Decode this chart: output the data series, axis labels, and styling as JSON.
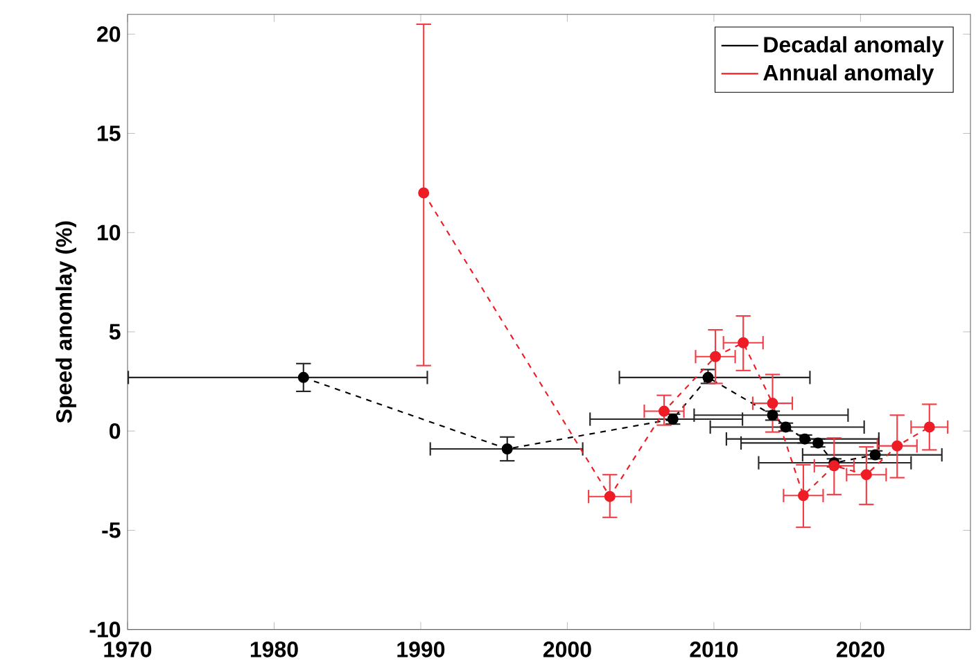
{
  "chart_data": {
    "type": "line",
    "ylabel": "Speed anomlay (%)",
    "xlim": [
      1970,
      2027.5
    ],
    "ylim": [
      -10,
      21
    ],
    "xticks": [
      1970,
      1980,
      1990,
      2000,
      2010,
      2020
    ],
    "yticks": [
      -10,
      -5,
      0,
      5,
      10,
      15,
      20
    ],
    "legend": "top right",
    "marker": "circle",
    "line_style": "dashed",
    "grid": false,
    "series": [
      {
        "name": "Decadal anomaly",
        "color": "#000000",
        "x": [
          1982.0,
          1995.9,
          2007.2,
          2009.6,
          2014.0,
          2014.9,
          2016.2,
          2017.1,
          2018.2,
          2021.0
        ],
        "values": [
          2.7,
          -0.9,
          0.6,
          2.7,
          0.8,
          0.2,
          -0.4,
          -0.6,
          -1.6,
          -1.2
        ],
        "errors": [
          [
            2.0,
            3.4
          ],
          [
            -1.5,
            -0.3
          ],
          [
            0.35,
            0.85
          ],
          [
            2.4,
            3.1
          ],
          [
            0.55,
            1.0
          ],
          [
            0.0,
            0.4
          ],
          [
            -0.6,
            -0.2
          ],
          [
            -0.8,
            -0.4
          ],
          [
            -1.8,
            -1.4
          ],
          [
            -1.4,
            -1.0
          ]
        ],
        "xerrors": [
          [
            1970,
            1990.5
          ],
          [
            1990.6,
            2001.1
          ],
          [
            2001.5,
            2012.0
          ],
          [
            2003.5,
            2016.6
          ],
          [
            2008.6,
            2019.2
          ],
          [
            2009.7,
            2020.3
          ],
          [
            2010.8,
            2021.3
          ],
          [
            2011.8,
            2021.3
          ],
          [
            2013.0,
            2023.5
          ],
          [
            2016.0,
            2025.6
          ]
        ]
      },
      {
        "name": "Annual anomaly",
        "color": "#ee1c25",
        "x": [
          1990.2,
          2002.9,
          2006.6,
          2010.1,
          2012.0,
          2014.0,
          2016.1,
          2018.2,
          2020.4,
          2022.5,
          2024.7
        ],
        "values": [
          12,
          -3.3,
          1.0,
          3.75,
          4.45,
          1.4,
          -3.25,
          -1.75,
          -2.2,
          -0.75,
          0.2
        ],
        "errors": [
          [
            3.3,
            20.5
          ],
          [
            -4.35,
            -2.2
          ],
          [
            0.3,
            1.8
          ],
          [
            2.4,
            5.1
          ],
          [
            3.05,
            5.8
          ],
          [
            -0.05,
            2.85
          ],
          [
            -4.85,
            -1.7
          ],
          [
            -3.2,
            -0.35
          ],
          [
            -3.7,
            -0.8
          ],
          [
            -2.35,
            0.8
          ],
          [
            -0.95,
            1.35
          ]
        ],
        "xerrors": [
          null,
          1.5,
          1.4,
          1.4,
          1.4,
          1.4,
          1.4,
          1.4,
          1.4,
          1.4,
          1.3
        ]
      }
    ]
  }
}
